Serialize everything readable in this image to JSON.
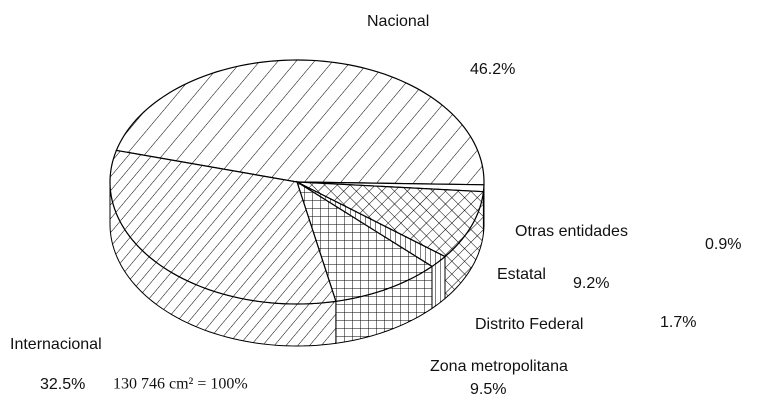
{
  "chart_data": {
    "type": "pie",
    "categories": [
      "Nacional",
      "Otras entidades",
      "Estatal",
      "Distrito Federal",
      "Zona metropolitana",
      "Internacional"
    ],
    "values": [
      46.2,
      0.9,
      9.2,
      1.7,
      9.5,
      32.5
    ],
    "value_labels": [
      "46.2%",
      "0.9%",
      "9.2%",
      "1.7%",
      "9.5%",
      "32.5%"
    ],
    "note": "130 746 cm² = 100%",
    "color": "#000000"
  }
}
